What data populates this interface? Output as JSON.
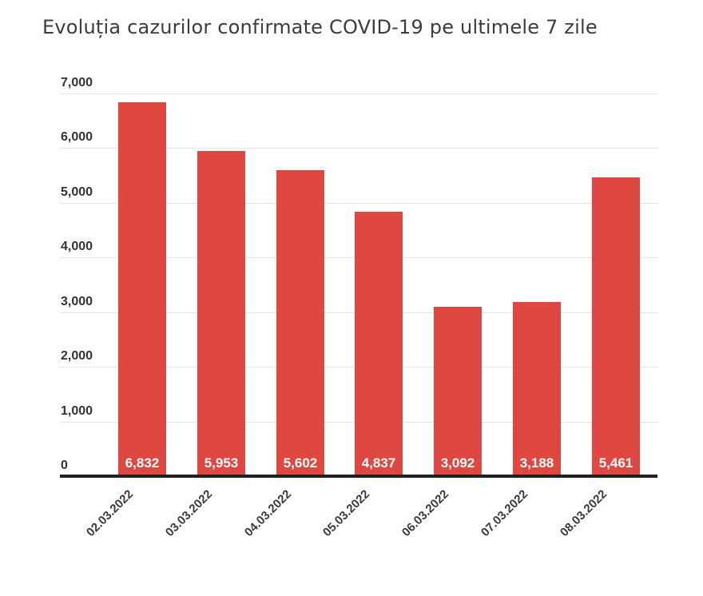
{
  "chart_data": {
    "type": "bar",
    "title": "Evoluția cazurilor confirmate COVID-19 pe ultimele 7 zile",
    "categories": [
      "02.03.2022",
      "03.03.2022",
      "04.03.2022",
      "05.03.2022",
      "06.03.2022",
      "07.03.2022",
      "08.03.2022"
    ],
    "values": [
      6832,
      5953,
      5602,
      4837,
      3092,
      3188,
      5461
    ],
    "bar_labels": [
      "6,832",
      "5,953",
      "5,602",
      "4,837",
      "3,092",
      "3,188",
      "5,461"
    ],
    "xlabel": "",
    "ylabel": "",
    "ylim": [
      0,
      7000
    ],
    "ytick_interval": 1000,
    "ytick_labels": [
      "0",
      "1,000",
      "2,000",
      "3,000",
      "4,000",
      "5,000",
      "6,000",
      "7,000"
    ],
    "grid": true,
    "legend": "none",
    "colors": {
      "bar": "#DF4841",
      "bar_label": "#FFFFFF",
      "axis_line": "#212121",
      "gridline": "#E4E4E4",
      "tick_text": "#333333",
      "title_text": "#3C3C3C"
    }
  }
}
